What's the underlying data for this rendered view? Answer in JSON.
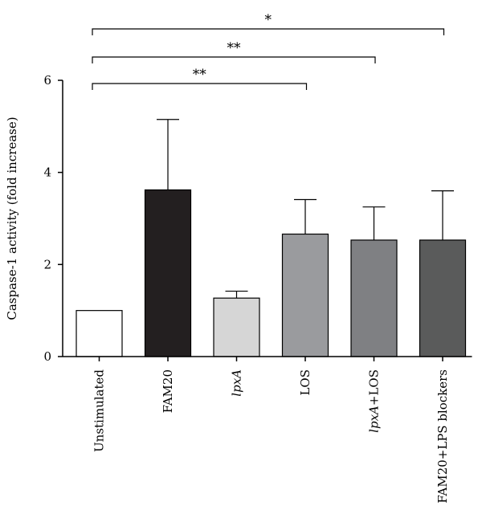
{
  "chart_data": {
    "type": "bar",
    "ylabel": "Caspase-1 activity (fold increase)",
    "ylim": [
      0,
      6
    ],
    "yticks": [
      0,
      2,
      4,
      6
    ],
    "categories": [
      "Unstimulated",
      "FAM20",
      "lpxA",
      "LOS",
      "lpxA+LOS",
      "FAM20+LPS blockers"
    ],
    "values": [
      1.0,
      3.62,
      1.27,
      2.66,
      2.53,
      2.53
    ],
    "errors": [
      0,
      1.53,
      0.15,
      0.75,
      0.72,
      1.07
    ],
    "colors": [
      "#ffffff",
      "#231f20",
      "#d6d6d6",
      "#9a9b9e",
      "#7f8083",
      "#5a5b5b"
    ],
    "significance": [
      {
        "from": 0,
        "to": 3,
        "label": "**",
        "level": 1
      },
      {
        "from": 0,
        "to": 4,
        "label": "**",
        "level": 2
      },
      {
        "from": 0,
        "to": 5,
        "label": "*",
        "level": 3
      }
    ]
  }
}
